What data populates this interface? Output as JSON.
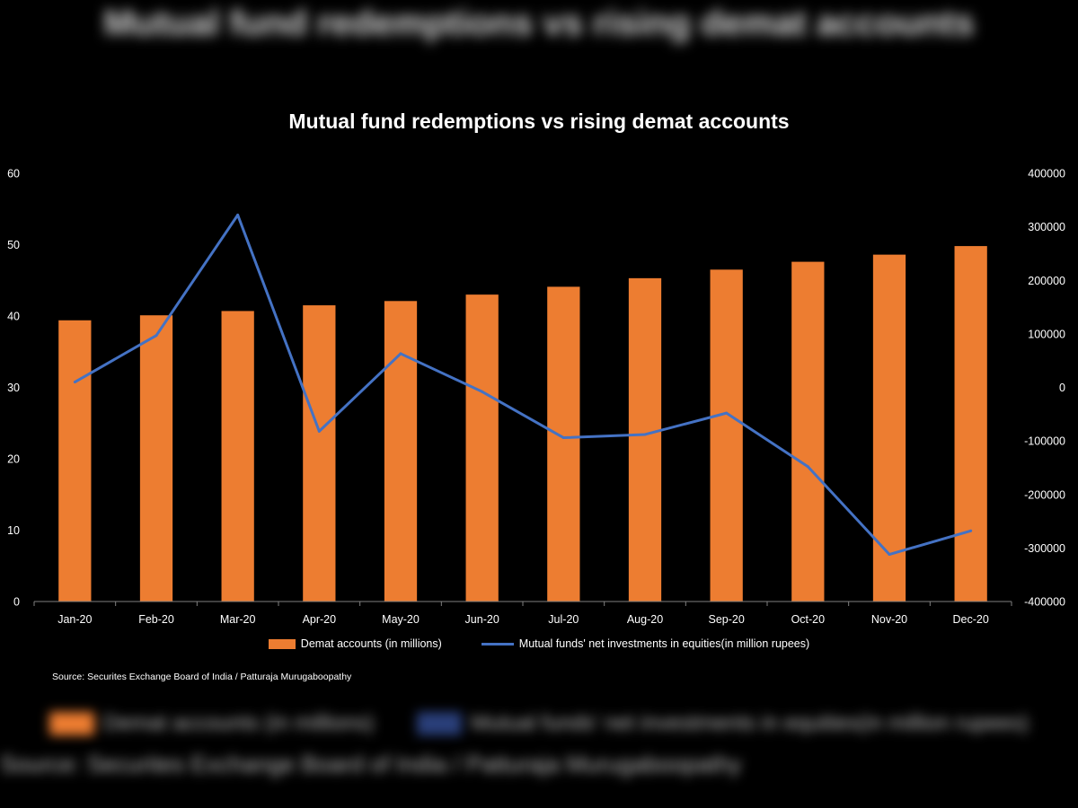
{
  "page": {
    "ghost_title": "Mutual fund redemptions vs rising demat accounts"
  },
  "colors": {
    "background": "#000000",
    "bar": "#ED7D31",
    "line": "#4472C4",
    "text": "#FFFFFF",
    "axis": "#808080"
  },
  "chart_data": {
    "type": "bar",
    "title": "Mutual fund redemptions vs rising demat accounts",
    "categories": [
      "Jan-20",
      "Feb-20",
      "Mar-20",
      "Apr-20",
      "May-20",
      "Jun-20",
      "Jul-20",
      "Aug-20",
      "Sep-20",
      "Oct-20",
      "Nov-20",
      "Dec-20"
    ],
    "series": [
      {
        "name": "Demat accounts (in millions)",
        "type": "bar",
        "axis": "left",
        "values": [
          39.4,
          40.1,
          40.7,
          41.5,
          42.1,
          43.0,
          44.1,
          45.3,
          46.5,
          47.6,
          48.6,
          49.8
        ]
      },
      {
        "name": "Mutual funds' net investments in equities(in million rupees)",
        "type": "line",
        "axis": "right",
        "values": [
          10000,
          97000,
          322000,
          -82000,
          63000,
          -8000,
          -94000,
          -88000,
          -48000,
          -148000,
          -312000,
          -268000
        ]
      }
    ],
    "y_left": {
      "min": 0,
      "max": 60,
      "ticks": [
        "0",
        "10",
        "20",
        "30",
        "40",
        "50",
        "60"
      ]
    },
    "y_right": {
      "min": -400000,
      "max": 400000,
      "ticks": [
        "-400000",
        "-300000",
        "-200000",
        "-100000",
        "0",
        "100000",
        "200000",
        "300000",
        "400000"
      ]
    },
    "grid": false,
    "legend_position": "bottom",
    "source": "Source: Securites Exchange Board of India / Patturaja Murugaboopathy"
  }
}
